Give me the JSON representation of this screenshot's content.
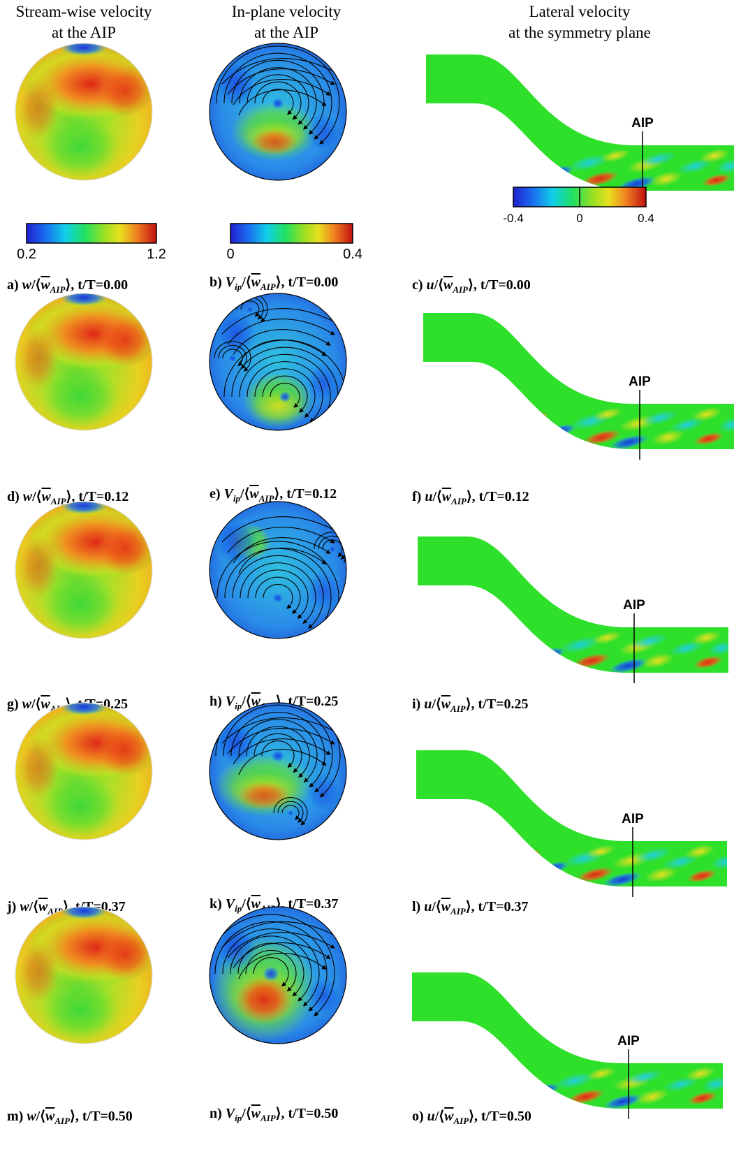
{
  "column_headers": [
    {
      "line1": "Stream-wise velocity",
      "line2": "at the AIP"
    },
    {
      "line1": "In-plane velocity",
      "line2": "at the AIP"
    },
    {
      "line1": "Lateral velocity",
      "line2": "at the symmetry plane"
    }
  ],
  "colorbars": {
    "streamwise": {
      "min": "0.2",
      "max": "1.2"
    },
    "inplane": {
      "min": "0",
      "max": "0.4"
    },
    "lateral": {
      "min": "-0.4",
      "mid": "0",
      "max": "0.4"
    }
  },
  "aip_label": "AIP",
  "rows": [
    {
      "time": "t/T=0.00",
      "captions": {
        "a": "a)",
        "b": "b)",
        "c": "c)"
      }
    },
    {
      "time": "t/T=0.12",
      "captions": {
        "a": "d)",
        "b": "e)",
        "c": "f)"
      }
    },
    {
      "time": "t/T=0.25",
      "captions": {
        "a": "g)",
        "b": "h)",
        "c": "i)"
      }
    },
    {
      "time": "t/T=0.37",
      "captions": {
        "a": "j)",
        "b": "k)",
        "c": "l)"
      }
    },
    {
      "time": "t/T=0.50",
      "captions": {
        "a": "m)",
        "b": "n)",
        "c": "o)"
      }
    }
  ],
  "caption_vars": {
    "streamwise": "w",
    "inplane": "V",
    "inplane_sub": "ip",
    "lateral": "u",
    "norm_sub": "AIP"
  },
  "colors": {
    "red": "#e8261a",
    "orange": "#f07a1a",
    "yellow": "#d8e61e",
    "green": "#2ee02a",
    "cyan": "#18d8e0",
    "blue": "#1848e8",
    "darkred": "#a01010"
  }
}
